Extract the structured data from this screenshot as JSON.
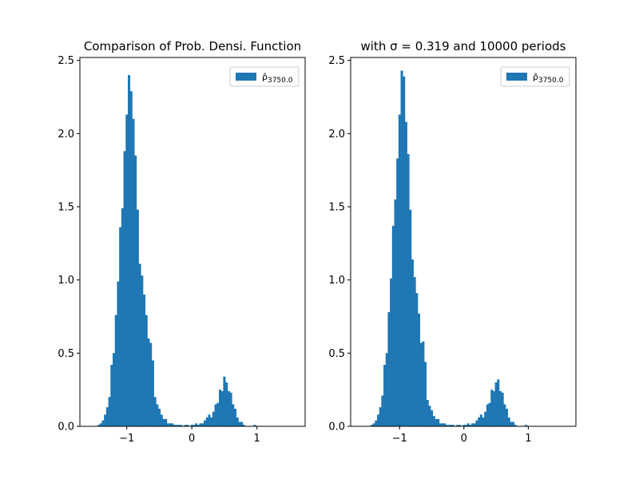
{
  "chart_data": [
    {
      "type": "bar",
      "title": "Comparison of Prob. Densi. Function",
      "xlim": [
        -1.72,
        1.74
      ],
      "ylim": [
        0,
        2.52
      ],
      "xticks": [
        -1,
        0,
        1
      ],
      "xtick_labels": [
        "−1",
        "0",
        "1"
      ],
      "yticks": [
        0.0,
        0.5,
        1.0,
        1.5,
        2.0,
        2.5
      ],
      "ytick_labels": [
        "0.0",
        "0.5",
        "1.0",
        "1.5",
        "2.0",
        "2.5"
      ],
      "legend": {
        "placement": "top-right",
        "label_main": "ρ̂",
        "label_sub": "3750.0"
      },
      "color": "#1f77b4",
      "bin_start": -1.45,
      "bin_width": 0.0333,
      "values": [
        0.01,
        0.02,
        0.04,
        0.08,
        0.13,
        0.2,
        0.42,
        0.5,
        0.76,
        0.99,
        1.36,
        1.49,
        1.88,
        2.13,
        2.4,
        2.29,
        2.1,
        1.85,
        1.48,
        1.11,
        1.03,
        0.9,
        0.76,
        0.6,
        0.57,
        0.45,
        0.2,
        0.15,
        0.12,
        0.08,
        0.05,
        0.05,
        0.02,
        0.02,
        0.02,
        0.01,
        0.01,
        0.01,
        0.01,
        0.0,
        0.01,
        0.01,
        0.0,
        0.01,
        0.01,
        0.02,
        0.01,
        0.02,
        0.02,
        0.04,
        0.06,
        0.08,
        0.06,
        0.1,
        0.15,
        0.16,
        0.25,
        0.24,
        0.34,
        0.3,
        0.24,
        0.23,
        0.15,
        0.12,
        0.06,
        0.03,
        0.03,
        0.01,
        0.0,
        0.0,
        0.0,
        0.0,
        0.01
      ]
    },
    {
      "type": "bar",
      "title": "with σ = 0.319 and 10000 periods",
      "xlim": [
        -1.76,
        1.74
      ],
      "ylim": [
        0,
        2.52
      ],
      "xticks": [
        -1,
        0,
        1
      ],
      "xtick_labels": [
        "−1",
        "0",
        "1"
      ],
      "yticks": [
        0.0,
        0.5,
        1.0,
        1.5,
        2.0,
        2.5
      ],
      "ytick_labels": [
        "0.0",
        "0.5",
        "1.0",
        "1.5",
        "2.0",
        "2.5"
      ],
      "legend": {
        "placement": "top-right",
        "label_main": "ρ̂",
        "label_sub": "3750.0"
      },
      "color": "#1f77b4",
      "bin_start": -1.45,
      "bin_width": 0.0333,
      "values": [
        0.01,
        0.02,
        0.04,
        0.08,
        0.13,
        0.21,
        0.42,
        0.5,
        0.78,
        1.01,
        1.37,
        1.55,
        1.83,
        2.13,
        2.43,
        2.39,
        2.08,
        1.86,
        1.48,
        1.14,
        1.02,
        0.91,
        0.77,
        0.57,
        0.58,
        0.44,
        0.18,
        0.14,
        0.11,
        0.07,
        0.05,
        0.05,
        0.02,
        0.02,
        0.02,
        0.01,
        0.01,
        0.01,
        0.01,
        0.0,
        0.01,
        0.01,
        0.0,
        0.01,
        0.01,
        0.02,
        0.01,
        0.02,
        0.02,
        0.04,
        0.06,
        0.08,
        0.06,
        0.1,
        0.15,
        0.16,
        0.25,
        0.24,
        0.3,
        0.32,
        0.24,
        0.23,
        0.15,
        0.12,
        0.06,
        0.03,
        0.03,
        0.01,
        0.0,
        0.0,
        0.0,
        0.0,
        0.01
      ]
    }
  ]
}
